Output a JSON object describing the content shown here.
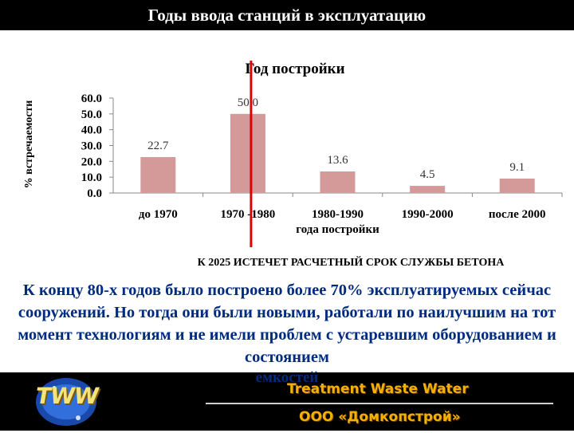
{
  "header": {
    "title": "Годы ввода станций в эксплуатацию"
  },
  "chart_data": {
    "type": "bar",
    "title": "Год постройки",
    "xlabel": "года постройки",
    "ylabel": "% встречаемости",
    "categories": [
      "до 1970",
      "1970 -1980",
      "1980-1990",
      "1990-2000",
      "после 2000"
    ],
    "values": [
      22.7,
      50.0,
      13.6,
      4.5,
      9.1
    ],
    "value_labels": [
      "22.7",
      "50.0",
      "13.6",
      "4.5",
      "9.1"
    ],
    "ylim": [
      0,
      60
    ],
    "yticks": [
      "0.0",
      "10.0",
      "20.0",
      "30.0",
      "40.0",
      "50.0",
      "60.0"
    ],
    "grid": false,
    "legend": "none",
    "bar_color": "#d49a9a",
    "marker_color": "#e00000"
  },
  "warning": "К 2025 ИСТЕЧЕТ РАСЧЕТНЫЙ СРОК СЛУЖБЫ БЕТОНА",
  "main_text": "К концу 80-х годов было построено более 70% эксплуатируемых сейчас сооружений. Но тогда они были новыми, работали по наилучшим на тот момент технологиям и не имели проблем с устаревшим оборудованием и состоянием",
  "main_text_tail": "емкостей",
  "footer": {
    "logo": "TWW",
    "brand_line1": "Treatment Waste Water",
    "brand_line2": "ООО «Домкопстрой»"
  }
}
